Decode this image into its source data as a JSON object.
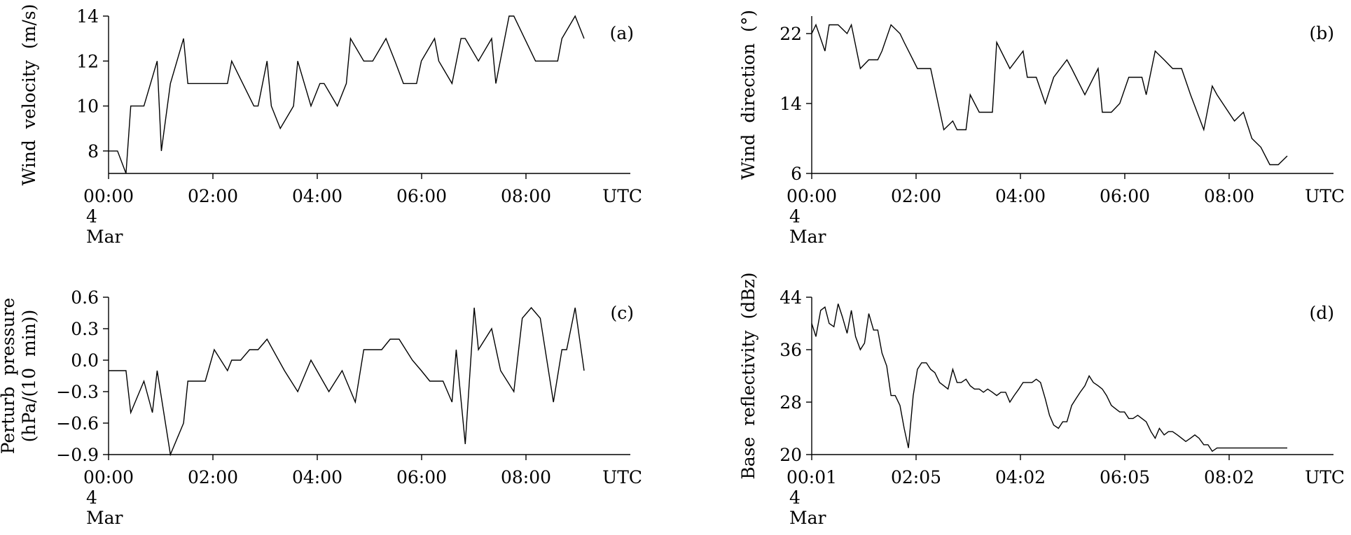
{
  "chart_data": [
    {
      "type": "line",
      "panel_label": "(a)",
      "ylabel_lines": [
        "Wind  velocity  (m/s)"
      ],
      "ylim": [
        7,
        14
      ],
      "yticks": [
        8,
        10,
        12,
        14
      ],
      "xticks": [
        "00:00",
        "02:00",
        "04:00",
        "06:00",
        "08:00"
      ],
      "x_unit_label": "UTC",
      "date_day": "4",
      "date_month": "Mar",
      "x_hours": [
        0,
        0.17,
        0.33,
        0.42,
        0.67,
        0.92,
        1.0,
        1.17,
        1.42,
        1.5,
        2.25,
        2.33,
        2.75,
        2.83,
        3.0,
        3.08,
        3.25,
        3.5,
        3.58,
        3.83,
        4.0,
        4.08,
        4.33,
        4.5,
        4.58,
        4.83,
        5.0,
        5.25,
        5.42,
        5.58,
        5.83,
        5.92,
        6.17,
        6.25,
        6.5,
        6.67,
        6.75,
        7.0,
        7.25,
        7.33,
        7.58,
        7.67,
        8.08,
        8.5,
        8.58,
        8.83,
        9.0
      ],
      "series": [
        {
          "name": "Wind velocity",
          "values": [
            8,
            8,
            7,
            10,
            10,
            12,
            8,
            11,
            13,
            11,
            11,
            12,
            10,
            10,
            12,
            10,
            9,
            10,
            12,
            10,
            11,
            11,
            10,
            11,
            13,
            12,
            12,
            13,
            12,
            11,
            11,
            12,
            13,
            12,
            11,
            13,
            13,
            12,
            13,
            11,
            14,
            14,
            12,
            12,
            13,
            14,
            13
          ]
        }
      ]
    },
    {
      "type": "line",
      "panel_label": "(b)",
      "ylabel_lines": [
        "Wind  direction  (°)"
      ],
      "ylim": [
        6,
        24
      ],
      "yticks": [
        6,
        14,
        22
      ],
      "xticks": [
        "00:00",
        "02:00",
        "04:00",
        "06:00",
        "08:00"
      ],
      "x_unit_label": "UTC",
      "date_day": "4",
      "date_month": "Mar",
      "x_hours": [
        0,
        0.08,
        0.25,
        0.33,
        0.5,
        0.67,
        0.75,
        0.92,
        1.08,
        1.25,
        1.33,
        1.5,
        1.67,
        1.75,
        2.0,
        2.08,
        2.25,
        2.5,
        2.67,
        2.75,
        2.92,
        3.0,
        3.17,
        3.42,
        3.5,
        3.75,
        4.0,
        4.08,
        4.25,
        4.42,
        4.58,
        4.83,
        4.92,
        5.17,
        5.42,
        5.5,
        5.67,
        5.83,
        6.0,
        6.25,
        6.33,
        6.5,
        6.67,
        6.83,
        7.0,
        7.17,
        7.42,
        7.58,
        7.67,
        8.0,
        8.17,
        8.33,
        8.5,
        8.67,
        8.83,
        9.0
      ],
      "series": [
        {
          "name": "Wind direction",
          "values": [
            22,
            23,
            20,
            23,
            23,
            22,
            23,
            18,
            19,
            19,
            20,
            23,
            22,
            21,
            18,
            18,
            18,
            11,
            12,
            11,
            11,
            15,
            13,
            13,
            21,
            18,
            20,
            17,
            17,
            14,
            17,
            19,
            18,
            15,
            18,
            13,
            13,
            14,
            17,
            17,
            15,
            20,
            19,
            18,
            18,
            15,
            11,
            16,
            15,
            12,
            13,
            10,
            9,
            7,
            7,
            8
          ]
        }
      ]
    },
    {
      "type": "line",
      "panel_label": "(c)",
      "ylabel_lines": [
        "Perturb  pressure",
        "(hPa/(10  min))"
      ],
      "ylim": [
        -0.9,
        0.6
      ],
      "yticks": [
        "-0.9",
        "-0.6",
        "-0.3",
        "0.0",
        "0.3",
        "0.6"
      ],
      "xticks": [
        "00:00",
        "02:00",
        "04:00",
        "06:00",
        "08:00"
      ],
      "x_unit_label": "UTC",
      "date_day": "4",
      "date_month": "Mar",
      "x_hours": [
        0,
        0.33,
        0.42,
        0.67,
        0.83,
        0.92,
        1.17,
        1.42,
        1.5,
        1.83,
        2.0,
        2.25,
        2.33,
        2.5,
        2.67,
        2.83,
        3.0,
        3.33,
        3.58,
        3.83,
        4.17,
        4.42,
        4.67,
        4.83,
        5.17,
        5.33,
        5.5,
        5.75,
        5.92,
        6.08,
        6.33,
        6.5,
        6.58,
        6.75,
        6.92,
        7.0,
        7.25,
        7.42,
        7.67,
        7.83,
        8.0,
        8.17,
        8.42,
        8.58,
        8.67,
        8.83,
        9.0
      ],
      "series": [
        {
          "name": "Perturb pressure",
          "values": [
            -0.1,
            -0.1,
            -0.5,
            -0.2,
            -0.5,
            -0.1,
            -0.9,
            -0.6,
            -0.2,
            -0.2,
            0.1,
            -0.1,
            0.0,
            0.0,
            0.1,
            0.1,
            0.2,
            -0.1,
            -0.3,
            0.0,
            -0.3,
            -0.1,
            -0.4,
            0.1,
            0.1,
            0.2,
            0.2,
            0.0,
            -0.1,
            -0.2,
            -0.2,
            -0.4,
            0.1,
            -0.8,
            0.5,
            0.1,
            0.3,
            -0.1,
            -0.3,
            0.4,
            0.5,
            0.4,
            -0.4,
            0.1,
            0.1,
            0.5,
            -0.1
          ]
        }
      ]
    },
    {
      "type": "line",
      "panel_label": "(d)",
      "ylabel_lines": [
        "Base  reflectivity  (dBz)"
      ],
      "ylim": [
        20,
        44
      ],
      "yticks": [
        20,
        28,
        36,
        44
      ],
      "xticks": [
        "00:01",
        "02:05",
        "04:02",
        "06:05",
        "08:02"
      ],
      "x_unit_label": "UTC",
      "date_day": "4",
      "date_month": "Mar",
      "x_hours": [
        0,
        0.08,
        0.17,
        0.25,
        0.33,
        0.42,
        0.5,
        0.58,
        0.67,
        0.75,
        0.83,
        0.92,
        1.0,
        1.08,
        1.17,
        1.25,
        1.33,
        1.42,
        1.5,
        1.58,
        1.67,
        1.75,
        1.83,
        1.92,
        2.0,
        2.08,
        2.17,
        2.25,
        2.33,
        2.42,
        2.5,
        2.58,
        2.67,
        2.75,
        2.83,
        2.92,
        3.0,
        3.08,
        3.17,
        3.25,
        3.33,
        3.42,
        3.5,
        3.58,
        3.67,
        3.75,
        3.83,
        3.92,
        4.0,
        4.08,
        4.17,
        4.25,
        4.33,
        4.42,
        4.5,
        4.58,
        4.67,
        4.75,
        4.83,
        4.92,
        5.0,
        5.08,
        5.17,
        5.25,
        5.33,
        5.42,
        5.5,
        5.58,
        5.67,
        5.75,
        5.83,
        5.92,
        6.0,
        6.08,
        6.17,
        6.25,
        6.33,
        6.42,
        6.5,
        6.58,
        6.67,
        6.75,
        6.83,
        6.92,
        7.0,
        7.08,
        7.17,
        7.25,
        7.33,
        7.42,
        7.5,
        7.58,
        7.67,
        7.75,
        7.83,
        7.92,
        8.0,
        8.08,
        8.17,
        8.25,
        8.33,
        8.42,
        8.5,
        8.58,
        8.67,
        8.75,
        8.83,
        8.92,
        9.0
      ],
      "series": [
        {
          "name": "Base reflectivity",
          "values": [
            40,
            38,
            42,
            42.5,
            40,
            39.5,
            43,
            41,
            38.5,
            42,
            38,
            36,
            37,
            41.5,
            39,
            39,
            35.5,
            33.5,
            29,
            29,
            27.5,
            24,
            21,
            29,
            33,
            34,
            34,
            33,
            32.5,
            31,
            30.5,
            30,
            33,
            31,
            31,
            31.5,
            30.5,
            30,
            30,
            29.5,
            30,
            29.5,
            29,
            29.5,
            29.5,
            28,
            29,
            30,
            31,
            31,
            31,
            31.5,
            31,
            28.5,
            26,
            24.5,
            24,
            25,
            25,
            27.5,
            28.5,
            29.5,
            30.5,
            32,
            31,
            30.5,
            30,
            29,
            27.5,
            27,
            26.5,
            26.5,
            25.5,
            25.5,
            26,
            25.5,
            25,
            23.5,
            22.5,
            24,
            23,
            23.5,
            23.5,
            23,
            22.5,
            22,
            22.5,
            23,
            22.5,
            21.5,
            21.5,
            20.5,
            21,
            21,
            21,
            21,
            21,
            21,
            21,
            21,
            21,
            21,
            21,
            21,
            21,
            21,
            21,
            21,
            21
          ]
        }
      ]
    }
  ]
}
